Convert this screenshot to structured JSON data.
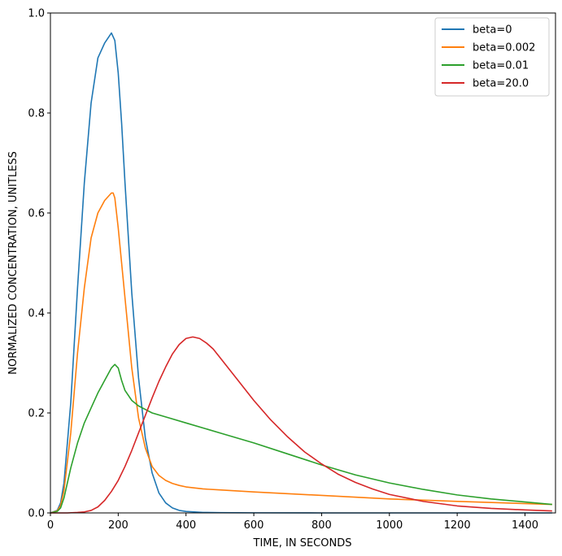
{
  "chart_data": {
    "type": "line",
    "xlabel": "TIME, IN SECONDS",
    "ylabel": "NORMALIZED CONCENTRATION, UNITLESS",
    "xlim": [
      0,
      1490
    ],
    "ylim": [
      0,
      1.0
    ],
    "xticks": [
      0,
      200,
      400,
      600,
      800,
      1000,
      1200,
      1400
    ],
    "yticks": [
      0.0,
      0.2,
      0.4,
      0.6,
      0.8,
      1.0
    ],
    "xtick_labels": [
      "0",
      "200",
      "400",
      "600",
      "800",
      "1000",
      "1200",
      "1400"
    ],
    "ytick_labels": [
      "0.0",
      "0.2",
      "0.4",
      "0.6",
      "0.8",
      "1.0"
    ],
    "grid": false,
    "legend_position": "top-right",
    "series": [
      {
        "name": "beta=0",
        "color": "#1f77b4",
        "x": [
          0,
          20,
          30,
          40,
          60,
          80,
          100,
          120,
          140,
          160,
          180,
          190,
          200,
          210,
          220,
          240,
          260,
          280,
          300,
          320,
          340,
          360,
          380,
          400,
          450,
          500,
          600,
          800,
          1000,
          1200,
          1480
        ],
        "y": [
          0,
          0.005,
          0.02,
          0.06,
          0.22,
          0.45,
          0.66,
          0.82,
          0.91,
          0.94,
          0.96,
          0.945,
          0.88,
          0.78,
          0.66,
          0.44,
          0.27,
          0.15,
          0.08,
          0.04,
          0.02,
          0.01,
          0.005,
          0.003,
          0.001,
          0.0005,
          0.0002,
          0,
          0,
          0,
          0
        ]
      },
      {
        "name": "beta=0.002",
        "color": "#ff7f0e",
        "x": [
          0,
          20,
          30,
          40,
          60,
          80,
          100,
          120,
          140,
          160,
          180,
          185,
          190,
          200,
          220,
          240,
          260,
          280,
          300,
          320,
          340,
          360,
          380,
          400,
          450,
          500,
          600,
          800,
          1000,
          1200,
          1480
        ],
        "y": [
          0,
          0.004,
          0.015,
          0.045,
          0.16,
          0.32,
          0.45,
          0.55,
          0.6,
          0.625,
          0.64,
          0.64,
          0.63,
          0.57,
          0.43,
          0.29,
          0.19,
          0.13,
          0.093,
          0.075,
          0.065,
          0.059,
          0.055,
          0.052,
          0.048,
          0.046,
          0.042,
          0.035,
          0.028,
          0.023,
          0.017
        ]
      },
      {
        "name": "beta=0.01",
        "color": "#2ca02c",
        "x": [
          0,
          20,
          30,
          40,
          60,
          80,
          100,
          120,
          140,
          160,
          180,
          190,
          200,
          210,
          220,
          240,
          260,
          280,
          300,
          350,
          400,
          500,
          600,
          700,
          800,
          900,
          1000,
          1100,
          1200,
          1300,
          1480
        ],
        "y": [
          0,
          0.003,
          0.01,
          0.03,
          0.09,
          0.14,
          0.18,
          0.21,
          0.24,
          0.265,
          0.29,
          0.297,
          0.29,
          0.265,
          0.245,
          0.225,
          0.214,
          0.207,
          0.2,
          0.19,
          0.18,
          0.16,
          0.14,
          0.118,
          0.096,
          0.076,
          0.06,
          0.047,
          0.036,
          0.028,
          0.017
        ]
      },
      {
        "name": "beta=20.0",
        "color": "#d62728",
        "x": [
          0,
          50,
          80,
          100,
          120,
          140,
          160,
          180,
          200,
          220,
          240,
          260,
          280,
          300,
          320,
          340,
          360,
          380,
          400,
          420,
          440,
          460,
          480,
          500,
          550,
          600,
          650,
          700,
          750,
          800,
          850,
          900,
          950,
          1000,
          1100,
          1200,
          1300,
          1400,
          1480
        ],
        "y": [
          0,
          0,
          0.001,
          0.002,
          0.005,
          0.012,
          0.025,
          0.043,
          0.065,
          0.093,
          0.125,
          0.16,
          0.195,
          0.23,
          0.263,
          0.292,
          0.318,
          0.337,
          0.349,
          0.352,
          0.349,
          0.34,
          0.328,
          0.311,
          0.268,
          0.225,
          0.186,
          0.152,
          0.122,
          0.098,
          0.077,
          0.061,
          0.048,
          0.037,
          0.023,
          0.014,
          0.009,
          0.006,
          0.004
        ]
      }
    ]
  }
}
